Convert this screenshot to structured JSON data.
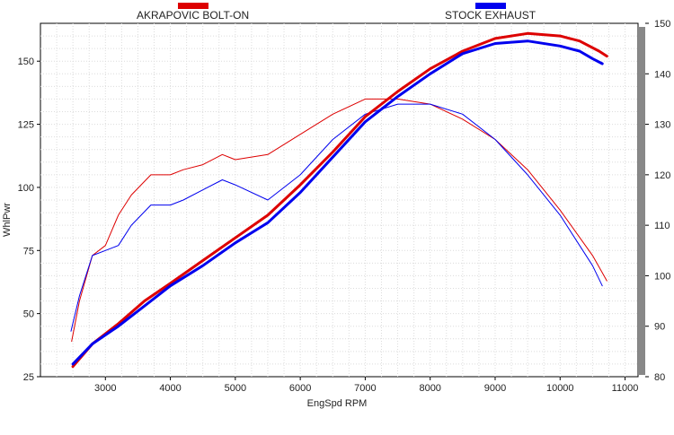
{
  "chart_data": {
    "type": "line",
    "xlabel": "EngSpd  RPM",
    "ylabel": "WhlPwr",
    "xlim": [
      2000,
      11200
    ],
    "ylim_left": [
      25,
      165
    ],
    "ylim_right": [
      80,
      150
    ],
    "x_ticks": [
      "3000",
      "4000",
      "5000",
      "6000",
      "7000",
      "8000",
      "9000",
      "10000",
      "11000"
    ],
    "y_ticks_left": [
      "25",
      "50",
      "75",
      "100",
      "125",
      "150"
    ],
    "y_ticks_right": [
      "80",
      "90",
      "100",
      "110",
      "120",
      "130",
      "140",
      "150"
    ],
    "grid": true,
    "legend_position": "top",
    "series": [
      {
        "name": "AKRAPOVIC BOLT-ON",
        "color": "#dd0000",
        "kind": "power",
        "x": [
          2500,
          2800,
          3200,
          3600,
          4000,
          4500,
          5000,
          5500,
          6000,
          6500,
          7000,
          7500,
          8000,
          8500,
          9000,
          9500,
          10000,
          10300,
          10600,
          10720
        ],
        "y": [
          29,
          38,
          46,
          55,
          62,
          71,
          80,
          89,
          101,
          114,
          128,
          138,
          147,
          154,
          159,
          161,
          160,
          158,
          154,
          152
        ]
      },
      {
        "name": "STOCK EXHAUST",
        "color": "#0000ee",
        "kind": "power",
        "x": [
          2500,
          2800,
          3200,
          3600,
          4000,
          4500,
          5000,
          5500,
          6000,
          6500,
          7000,
          7500,
          8000,
          8500,
          9000,
          9500,
          10000,
          10300,
          10500,
          10650
        ],
        "y": [
          30,
          38,
          45,
          53,
          61,
          69,
          78,
          86,
          98,
          112,
          126,
          136,
          145,
          153,
          157,
          158,
          156,
          154,
          151,
          149
        ]
      },
      {
        "name": "AKRAPOVIC BOLT-ON",
        "color": "#dd0000",
        "kind": "torque",
        "x": [
          2480,
          2600,
          2800,
          3000,
          3200,
          3400,
          3700,
          4000,
          4200,
          4500,
          4800,
          5000,
          5500,
          6000,
          6500,
          7000,
          7500,
          8000,
          8500,
          9000,
          9500,
          10000,
          10500,
          10720
        ],
        "y": [
          87,
          95,
          104,
          106,
          112,
          116,
          120,
          120,
          121,
          122,
          124,
          123,
          124,
          128,
          132,
          135,
          135,
          134,
          131,
          127,
          121,
          113,
          104,
          99
        ]
      },
      {
        "name": "STOCK EXHAUST",
        "color": "#0000ee",
        "kind": "torque",
        "x": [
          2470,
          2600,
          2800,
          3000,
          3200,
          3400,
          3700,
          4000,
          4200,
          4500,
          4800,
          5000,
          5500,
          6000,
          6500,
          7000,
          7500,
          8000,
          8500,
          9000,
          9500,
          10000,
          10500,
          10650
        ],
        "y": [
          89,
          96,
          104,
          105,
          106,
          110,
          114,
          114,
          115,
          117,
          119,
          118,
          115,
          120,
          127,
          132,
          134,
          134,
          132,
          127,
          120,
          112,
          102,
          98
        ]
      }
    ]
  },
  "legend": [
    {
      "label": "AKRAPOVIC BOLT-ON",
      "color": "#dd0000"
    },
    {
      "label": "STOCK EXHAUST",
      "color": "#0000ee"
    }
  ]
}
